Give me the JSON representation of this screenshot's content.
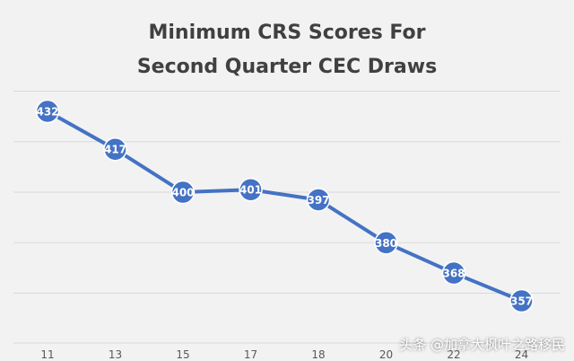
{
  "chart_data": {
    "type": "line",
    "title_line1": "Minimum CRS Scores For",
    "title_line2": "Second Quarter CEC Draws",
    "categories": [
      "11",
      "13",
      "15",
      "17",
      "18",
      "20",
      "22",
      "24"
    ],
    "series": [
      {
        "values": [
          432,
          417,
          400,
          401,
          397,
          380,
          368,
          357
        ]
      }
    ],
    "ylim": [
      345,
      445
    ],
    "gridlines": [
      360,
      380,
      400,
      420,
      440
    ],
    "grid": true,
    "data_labels": true,
    "colors": {
      "line": "#4472c4",
      "marker_fill": "#4472c4",
      "marker_stroke": "#ffffff",
      "label": "#ffffff",
      "grid": "#d9d9d9",
      "tick": "#595959"
    }
  },
  "watermark": "头条 @加拿大枫叶之路移民"
}
